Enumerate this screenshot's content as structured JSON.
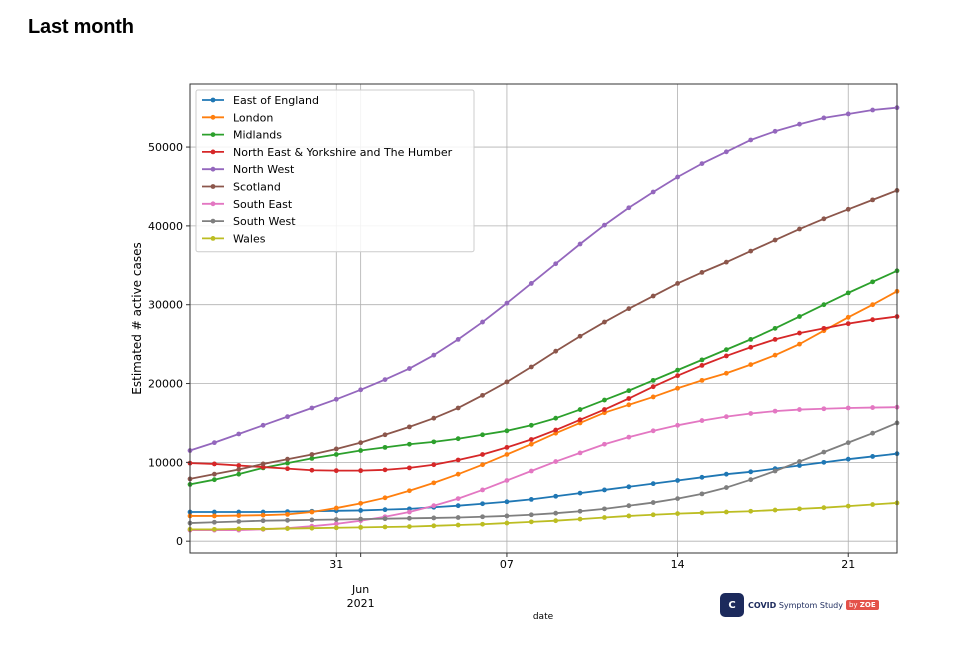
{
  "page": {
    "title": "Last month"
  },
  "logo": {
    "covid": "COVID",
    "symptom_study": "Symptom Study",
    "by": "by",
    "zoe": "ZOE"
  },
  "chart_data": {
    "type": "line",
    "xlabel": "date",
    "ylabel": "Estimated # active cases",
    "ylim": [
      -1500,
      58000
    ],
    "yticks": [
      0,
      10000,
      20000,
      30000,
      40000,
      50000
    ],
    "ytick_labels": [
      "0",
      "10000",
      "20000",
      "30000",
      "40000",
      "50000"
    ],
    "x_start": "2021-05-25",
    "x_end": "2021-06-23",
    "xticks": [
      {
        "date": "2021-05-31",
        "label": "31",
        "sub": ""
      },
      {
        "date": "2021-06-01",
        "label": "Jun",
        "sub": "2021"
      },
      {
        "date": "2021-06-07",
        "label": "07",
        "sub": ""
      },
      {
        "date": "2021-06-14",
        "label": "14",
        "sub": ""
      },
      {
        "date": "2021-06-21",
        "label": "21",
        "sub": ""
      }
    ],
    "grid": true,
    "legend_position": "top-left",
    "x": [
      "2021-05-25",
      "2021-05-26",
      "2021-05-27",
      "2021-05-28",
      "2021-05-29",
      "2021-05-30",
      "2021-05-31",
      "2021-06-01",
      "2021-06-02",
      "2021-06-03",
      "2021-06-04",
      "2021-06-05",
      "2021-06-06",
      "2021-06-07",
      "2021-06-08",
      "2021-06-09",
      "2021-06-10",
      "2021-06-11",
      "2021-06-12",
      "2021-06-13",
      "2021-06-14",
      "2021-06-15",
      "2021-06-16",
      "2021-06-17",
      "2021-06-18",
      "2021-06-19",
      "2021-06-20",
      "2021-06-21",
      "2021-06-22",
      "2021-06-23"
    ],
    "series": [
      {
        "name": "East of England",
        "color": "#1f77b4",
        "values": [
          3700,
          3700,
          3700,
          3700,
          3750,
          3800,
          3850,
          3900,
          4000,
          4100,
          4300,
          4500,
          4750,
          5000,
          5300,
          5700,
          6100,
          6500,
          6900,
          7300,
          7700,
          8100,
          8500,
          8800,
          9200,
          9600,
          10000,
          10400,
          10750,
          11100
        ]
      },
      {
        "name": "London",
        "color": "#ff7f0e",
        "values": [
          3200,
          3200,
          3250,
          3300,
          3400,
          3700,
          4200,
          4800,
          5500,
          6400,
          7400,
          8500,
          9700,
          11000,
          12300,
          13700,
          15000,
          16300,
          17300,
          18300,
          19400,
          20400,
          21300,
          22400,
          23600,
          25000,
          26700,
          28400,
          30000,
          31700
        ]
      },
      {
        "name": "Midlands",
        "color": "#2ca02c",
        "values": [
          7200,
          7800,
          8500,
          9300,
          9900,
          10500,
          11000,
          11500,
          11900,
          12300,
          12600,
          13000,
          13500,
          14000,
          14700,
          15600,
          16700,
          17900,
          19100,
          20400,
          21700,
          23000,
          24300,
          25600,
          27000,
          28500,
          30000,
          31500,
          32900,
          34300
        ]
      },
      {
        "name": "North East & Yorkshire and The Humber",
        "color": "#d62728",
        "values": [
          9900,
          9800,
          9600,
          9400,
          9200,
          9000,
          8950,
          8950,
          9050,
          9300,
          9700,
          10300,
          11000,
          11900,
          12900,
          14100,
          15400,
          16700,
          18100,
          19600,
          21000,
          22300,
          23500,
          24600,
          25600,
          26400,
          27000,
          27600,
          28100,
          28500
        ]
      },
      {
        "name": "North West",
        "color": "#9467bd",
        "values": [
          11500,
          12500,
          13600,
          14700,
          15800,
          16900,
          18000,
          19200,
          20500,
          21900,
          23600,
          25600,
          27800,
          30200,
          32700,
          35200,
          37700,
          40100,
          42300,
          44300,
          46200,
          47900,
          49400,
          50900,
          52000,
          52900,
          53700,
          54200,
          54700,
          55000
        ]
      },
      {
        "name": "Scotland",
        "color": "#8c564b",
        "values": [
          7900,
          8500,
          9100,
          9800,
          10400,
          11000,
          11700,
          12500,
          13500,
          14500,
          15600,
          16900,
          18500,
          20200,
          22100,
          24100,
          26000,
          27800,
          29500,
          31100,
          32700,
          34100,
          35400,
          36800,
          38200,
          39600,
          40900,
          42100,
          43300,
          44500
        ]
      },
      {
        "name": "South East",
        "color": "#e377c2",
        "values": [
          1400,
          1400,
          1400,
          1500,
          1650,
          1900,
          2200,
          2600,
          3100,
          3700,
          4500,
          5400,
          6500,
          7700,
          8900,
          10100,
          11200,
          12300,
          13200,
          14000,
          14700,
          15300,
          15800,
          16200,
          16500,
          16700,
          16800,
          16900,
          16950,
          17000
        ]
      },
      {
        "name": "South West",
        "color": "#7f7f7f",
        "values": [
          2300,
          2400,
          2500,
          2600,
          2650,
          2700,
          2750,
          2800,
          2850,
          2900,
          2950,
          3000,
          3100,
          3200,
          3350,
          3550,
          3800,
          4100,
          4500,
          4900,
          5400,
          6000,
          6800,
          7800,
          8900,
          10100,
          11300,
          12500,
          13700,
          15000
        ]
      },
      {
        "name": "Wales",
        "color": "#bcbd22",
        "values": [
          1500,
          1500,
          1550,
          1550,
          1600,
          1650,
          1700,
          1750,
          1800,
          1850,
          1950,
          2050,
          2150,
          2300,
          2450,
          2600,
          2800,
          3000,
          3200,
          3350,
          3500,
          3600,
          3700,
          3800,
          3950,
          4100,
          4250,
          4450,
          4650,
          4850
        ]
      }
    ]
  }
}
